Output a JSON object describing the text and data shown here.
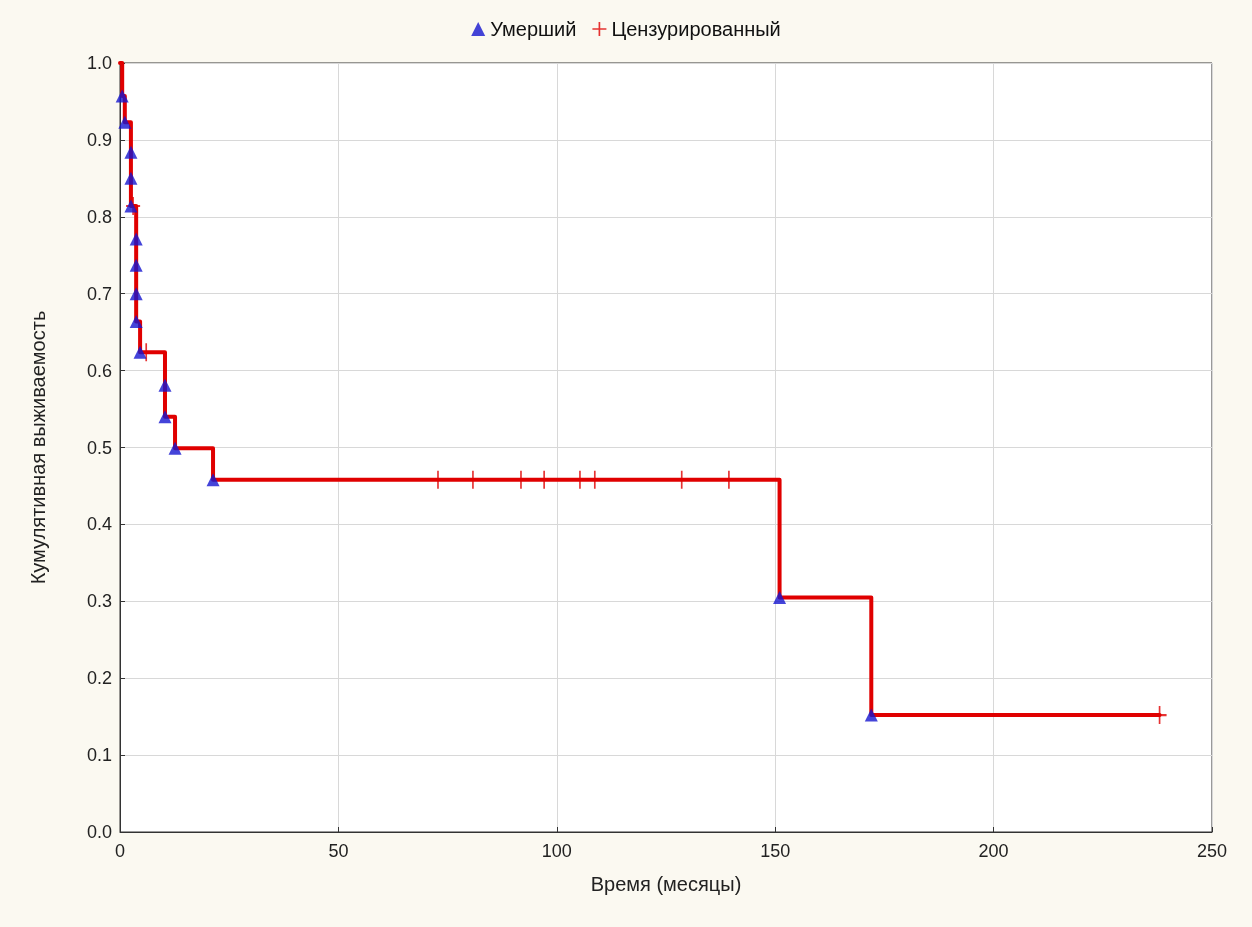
{
  "chart_data": {
    "type": "step",
    "xlabel": "Время (месяцы)",
    "ylabel": "Кумулятивная выживаемость",
    "xlim": [
      0,
      250
    ],
    "xticks": [
      0,
      50,
      100,
      150,
      200,
      250
    ],
    "ylim": [
      0,
      1
    ],
    "yticks": [
      {
        "value": 0,
        "label": "0.0"
      },
      0.1,
      0.2,
      0.3,
      0.4,
      0.5,
      0.6,
      0.7,
      0.8,
      0.9,
      {
        "value": 1,
        "label": "1.0"
      }
    ],
    "grid": true,
    "legend": "top",
    "series": [
      {
        "type": "step",
        "color": "#e00000",
        "line_style": "solid",
        "marker": "none",
        "x": [
          0,
          0.5,
          1.1,
          2.5,
          2.5,
          2.5,
          3.7,
          3.7,
          3.7,
          3.7,
          4.6,
          10.3,
          10.3,
          12.6,
          21.3,
          151,
          172,
          238
        ],
        "values": [
          1,
          0.957,
          0.923,
          0.884,
          0.85,
          0.814,
          0.771,
          0.737,
          0.7,
          0.664,
          0.624,
          0.581,
          0.54,
          0.499,
          0.458,
          0.305,
          0.152,
          0.152
        ]
      },
      {
        "type": "scatter",
        "name": "Умерший",
        "color": "#1515d0",
        "marker": "triangle",
        "x": [
          0.5,
          1.1,
          2.5,
          2.5,
          2.5,
          3.7,
          3.7,
          3.7,
          3.7,
          4.6,
          10.3,
          10.3,
          12.6,
          21.3,
          151,
          172
        ],
        "values": [
          0.957,
          0.923,
          0.884,
          0.85,
          0.814,
          0.771,
          0.737,
          0.7,
          0.664,
          0.624,
          0.581,
          0.54,
          0.499,
          0.458,
          0.305,
          0.152
        ]
      },
      {
        "type": "scatter",
        "name": "Цензурированный",
        "color": "#e00000",
        "marker": "cross",
        "x": [
          3,
          6,
          72.8,
          80.8,
          91.8,
          97.1,
          105.3,
          108.7,
          128.6,
          139.4,
          238
        ],
        "values": [
          0.814,
          0.624,
          0.458,
          0.458,
          0.458,
          0.458,
          0.458,
          0.458,
          0.458,
          0.458,
          0.152
        ]
      }
    ]
  }
}
